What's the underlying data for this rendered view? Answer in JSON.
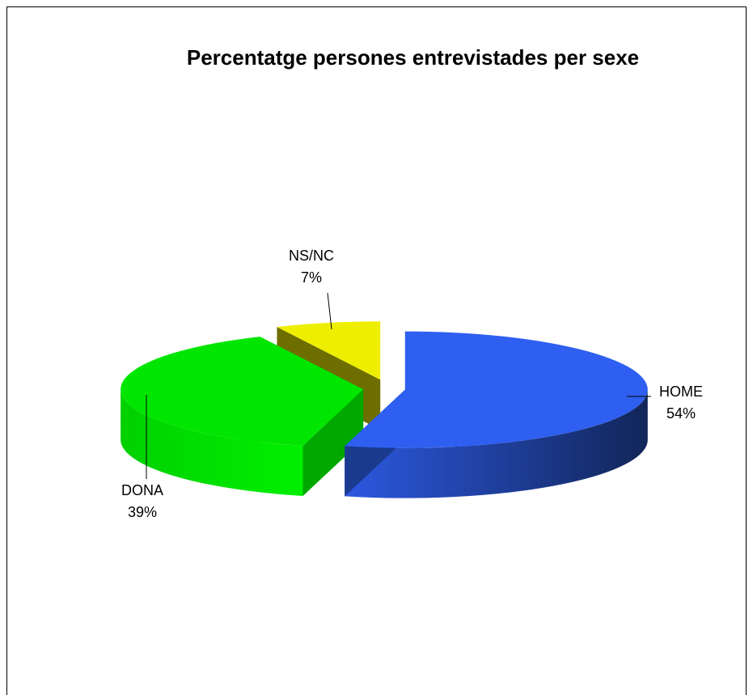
{
  "chart_data": {
    "type": "pie",
    "title": "Percentatge persones entrevistades per sexe",
    "slices": [
      {
        "label": "HOME",
        "value": 54,
        "value_label": "54%",
        "color": "#2e5ff0",
        "side_color": "#1a3a8f"
      },
      {
        "label": "DONA",
        "value": 39,
        "value_label": "39%",
        "color": "#00e600",
        "side_color": "#00a800"
      },
      {
        "label": "NS/NC",
        "value": 7,
        "value_label": "7%",
        "color": "#eeee00",
        "side_color": "#6e6e00"
      }
    ],
    "style": "3d-exploded"
  }
}
